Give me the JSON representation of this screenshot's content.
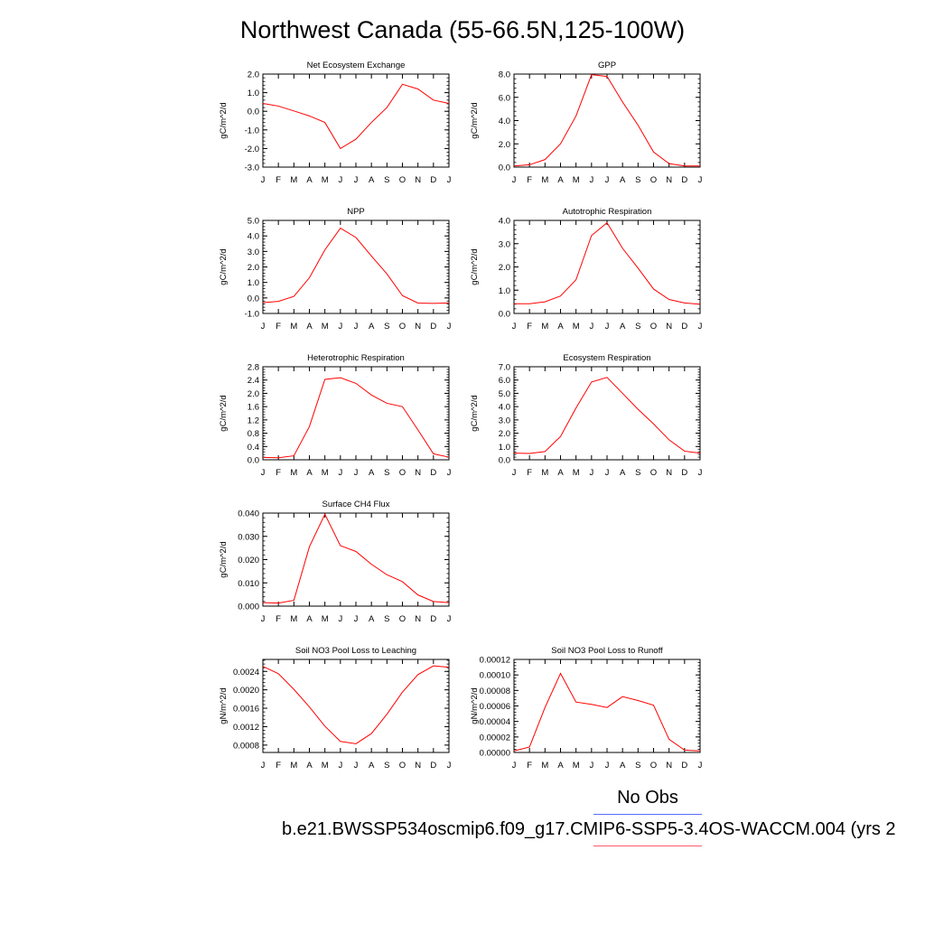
{
  "title": "Northwest Canada (55-66.5N,125-100W)",
  "legend": {
    "obs_label": "No Obs",
    "obs_color": "#5b6bff",
    "model_color": "#ff5b6b"
  },
  "case_name": "b.e21.BWSSP534oscmip6.f09_g17.CMIP6-SSP5-3.4OS-WACCM.004 (yrs 2",
  "line_color": "#ff0000",
  "chart_data": [
    {
      "type": "line",
      "title": "Net Ecosystem Exchange",
      "ylabel": "gC/m^2/d",
      "categories": [
        "J",
        "F",
        "M",
        "A",
        "M",
        "J",
        "J",
        "A",
        "S",
        "O",
        "N",
        "D",
        "J"
      ],
      "values": [
        0.42,
        0.28,
        0.02,
        -0.25,
        -0.6,
        -2.0,
        -1.5,
        -0.6,
        0.2,
        1.45,
        1.2,
        0.6,
        0.42
      ],
      "ylim": [
        -3.0,
        2.0
      ],
      "yticks": [
        -3.0,
        -2.0,
        -1.0,
        0.0,
        1.0,
        2.0
      ],
      "ytick_labels": [
        "-3.0",
        "-2.0",
        "-1.0",
        "0.0",
        "1.0",
        "2.0"
      ]
    },
    {
      "type": "line",
      "title": "GPP",
      "ylabel": "gC/m^2/d",
      "categories": [
        "J",
        "F",
        "M",
        "A",
        "M",
        "J",
        "J",
        "A",
        "S",
        "O",
        "N",
        "D",
        "J"
      ],
      "values": [
        0.1,
        0.2,
        0.65,
        2.0,
        4.4,
        7.95,
        7.8,
        5.6,
        3.6,
        1.3,
        0.3,
        0.1,
        0.1
      ],
      "ylim": [
        0.0,
        8.0
      ],
      "yticks": [
        0.0,
        2.0,
        4.0,
        6.0,
        8.0
      ],
      "ytick_labels": [
        "0.0",
        "2.0",
        "4.0",
        "6.0",
        "8.0"
      ]
    },
    {
      "type": "line",
      "title": "NPP",
      "ylabel": "gC/m^2/d",
      "categories": [
        "J",
        "F",
        "M",
        "A",
        "M",
        "J",
        "J",
        "A",
        "S",
        "O",
        "N",
        "D",
        "J"
      ],
      "values": [
        -0.3,
        -0.22,
        0.1,
        1.3,
        3.1,
        4.5,
        3.9,
        2.7,
        1.55,
        0.15,
        -0.33,
        -0.35,
        -0.32
      ],
      "ylim": [
        -1.0,
        5.0
      ],
      "yticks": [
        -1.0,
        0.0,
        1.0,
        2.0,
        3.0,
        4.0,
        5.0
      ],
      "ytick_labels": [
        "-1.0",
        "0.0",
        "1.0",
        "2.0",
        "3.0",
        "4.0",
        "5.0"
      ]
    },
    {
      "type": "line",
      "title": "Autotrophic Respiration",
      "ylabel": "gC/m^2/d",
      "categories": [
        "J",
        "F",
        "M",
        "A",
        "M",
        "J",
        "J",
        "A",
        "S",
        "O",
        "N",
        "D",
        "J"
      ],
      "values": [
        0.42,
        0.42,
        0.5,
        0.75,
        1.45,
        3.35,
        3.9,
        2.8,
        1.95,
        1.05,
        0.6,
        0.45,
        0.4
      ],
      "ylim": [
        0.0,
        4.0
      ],
      "yticks": [
        0.0,
        1.0,
        2.0,
        3.0,
        4.0
      ],
      "ytick_labels": [
        "0.0",
        "1.0",
        "2.0",
        "3.0",
        "4.0"
      ]
    },
    {
      "type": "line",
      "title": "Heterotrophic Respiration",
      "ylabel": "gC/m^2/d",
      "categories": [
        "J",
        "F",
        "M",
        "A",
        "M",
        "J",
        "J",
        "A",
        "S",
        "O",
        "N",
        "D",
        "J"
      ],
      "values": [
        0.07,
        0.06,
        0.12,
        1.0,
        2.42,
        2.47,
        2.3,
        1.95,
        1.7,
        1.6,
        0.9,
        0.18,
        0.08
      ],
      "ylim": [
        0.0,
        2.8
      ],
      "yticks": [
        0.0,
        0.4,
        0.8,
        1.2,
        1.6,
        2.0,
        2.4,
        2.8
      ],
      "ytick_labels": [
        "0.0",
        "0.4",
        "0.8",
        "1.2",
        "1.6",
        "2.0",
        "2.4",
        "2.8"
      ]
    },
    {
      "type": "line",
      "title": "Ecosystem Respiration",
      "ylabel": "gC/m^2/d",
      "categories": [
        "J",
        "F",
        "M",
        "A",
        "M",
        "J",
        "J",
        "A",
        "S",
        "O",
        "N",
        "D",
        "J"
      ],
      "values": [
        0.5,
        0.48,
        0.62,
        1.75,
        3.9,
        5.85,
        6.2,
        5.0,
        3.8,
        2.7,
        1.5,
        0.65,
        0.5
      ],
      "ylim": [
        0.0,
        7.0
      ],
      "yticks": [
        0.0,
        1.0,
        2.0,
        3.0,
        4.0,
        5.0,
        6.0,
        7.0
      ],
      "ytick_labels": [
        "0.0",
        "1.0",
        "2.0",
        "3.0",
        "4.0",
        "5.0",
        "6.0",
        "7.0"
      ]
    },
    {
      "type": "line",
      "title": "Surface CH4 Flux",
      "ylabel": "gC/m^2/d",
      "categories": [
        "J",
        "F",
        "M",
        "A",
        "M",
        "J",
        "J",
        "A",
        "S",
        "O",
        "N",
        "D",
        "J"
      ],
      "values": [
        0.0015,
        0.0013,
        0.0025,
        0.0255,
        0.0395,
        0.026,
        0.0235,
        0.018,
        0.0135,
        0.0105,
        0.0048,
        0.002,
        0.0015
      ],
      "ylim": [
        0.0,
        0.04
      ],
      "yticks": [
        0.0,
        0.01,
        0.02,
        0.03,
        0.04
      ],
      "ytick_labels": [
        "0.000",
        "0.010",
        "0.020",
        "0.030",
        "0.040"
      ]
    },
    {
      "type": "line",
      "title": "Soil NO3 Pool Loss to Leaching",
      "ylabel": "gN/m^2/d",
      "categories": [
        "J",
        "F",
        "M",
        "A",
        "M",
        "J",
        "J",
        "A",
        "S",
        "O",
        "N",
        "D",
        "J"
      ],
      "values": [
        0.00251,
        0.00235,
        0.00201,
        0.00163,
        0.00121,
        0.00088,
        0.00083,
        0.00105,
        0.00147,
        0.00195,
        0.00233,
        0.00252,
        0.00249
      ],
      "ylim": [
        0.00064,
        0.00266
      ],
      "yticks": [
        0.0008,
        0.0012,
        0.0016,
        0.002,
        0.0024
      ],
      "ytick_labels": [
        "0.0008",
        "0.0012",
        "0.0016",
        "0.0020",
        "0.0024"
      ]
    },
    {
      "type": "line",
      "title": "Soil NO3 Pool Loss to Runoff",
      "ylabel": "gN/m^2/d",
      "categories": [
        "J",
        "F",
        "M",
        "A",
        "M",
        "J",
        "J",
        "A",
        "S",
        "O",
        "N",
        "D",
        "J"
      ],
      "values": [
        2e-06,
        7e-06,
        5.8e-05,
        0.000102,
        6.5e-05,
        6.2e-05,
        5.8e-05,
        7.2e-05,
        6.7e-05,
        6.1e-05,
        1.7e-05,
        3e-06,
        2e-06
      ],
      "ylim": [
        0.0,
        0.00012
      ],
      "yticks": [
        0.0,
        2e-05,
        4e-05,
        6e-05,
        8e-05,
        0.0001,
        0.00012
      ],
      "ytick_labels": [
        "0.00000",
        "0.00002",
        "0.00004",
        "0.00006",
        "0.00008",
        "0.00010",
        "0.00012"
      ]
    }
  ]
}
